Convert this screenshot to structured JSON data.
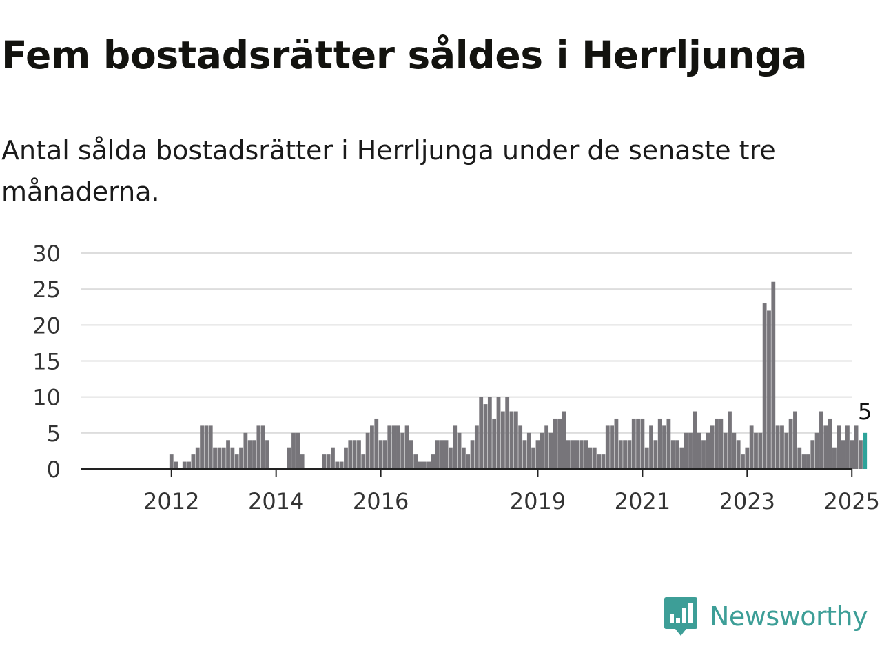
{
  "header": {
    "title": "Fem bostadsrätter såldes i Herrljunga",
    "subtitle": "Antal sålda bostadsrätter i Herrljunga under de senaste tre månaderna."
  },
  "brand": {
    "name": "Newsworthy",
    "icon": "newsworthy-logo-icon",
    "color": "#3d9e97"
  },
  "colors": {
    "bar": "#77757a",
    "highlight": "#2ea39a",
    "grid": "#dddddd",
    "axis": "#222222"
  },
  "chart_data": {
    "type": "bar",
    "title": "Fem bostadsrätter såldes i Herrljunga",
    "subtitle": "Antal sålda bostadsrätter i Herrljunga under de senaste tre månaderna.",
    "xlabel": "",
    "ylabel": "",
    "ylim": [
      0,
      30
    ],
    "yticks": [
      0,
      5,
      10,
      15,
      20,
      25,
      30
    ],
    "xticks": [
      {
        "label": "2012",
        "month": "2012-01"
      },
      {
        "label": "2014",
        "month": "2014-01"
      },
      {
        "label": "2016",
        "month": "2016-01"
      },
      {
        "label": "2019",
        "month": "2019-01"
      },
      {
        "label": "2021",
        "month": "2021-01"
      },
      {
        "label": "2023",
        "month": "2023-01"
      },
      {
        "label": "2025",
        "month": "2025-01"
      }
    ],
    "grid": true,
    "legend": "none",
    "start_month": "2011-01",
    "end_month": "2025-04",
    "values": [
      0,
      0,
      0,
      0,
      0,
      0,
      0,
      0,
      0,
      0,
      0,
      0,
      2,
      1,
      0,
      1,
      1,
      2,
      3,
      6,
      6,
      6,
      3,
      3,
      3,
      4,
      3,
      2,
      3,
      5,
      4,
      4,
      6,
      6,
      4,
      0,
      0,
      0,
      0,
      3,
      5,
      5,
      2,
      0,
      0,
      0,
      0,
      2,
      2,
      3,
      1,
      1,
      3,
      4,
      4,
      4,
      2,
      5,
      6,
      7,
      4,
      4,
      6,
      6,
      6,
      5,
      6,
      4,
      2,
      1,
      1,
      1,
      2,
      4,
      4,
      4,
      3,
      6,
      5,
      3,
      2,
      4,
      6,
      10,
      9,
      10,
      7,
      10,
      8,
      10,
      8,
      8,
      6,
      4,
      5,
      3,
      4,
      5,
      6,
      5,
      7,
      7,
      8,
      4,
      4,
      4,
      4,
      4,
      3,
      3,
      2,
      2,
      6,
      6,
      7,
      4,
      4,
      4,
      7,
      7,
      7,
      3,
      6,
      4,
      7,
      6,
      7,
      4,
      4,
      3,
      5,
      5,
      8,
      5,
      4,
      5,
      6,
      7,
      7,
      5,
      8,
      5,
      4,
      2,
      3,
      6,
      5,
      5,
      23,
      22,
      26,
      6,
      6,
      5,
      7,
      8,
      3,
      2,
      2,
      4,
      5,
      8,
      6,
      7,
      3,
      6,
      4,
      6,
      4,
      6,
      4,
      5
    ],
    "highlight": {
      "month": "2025-04",
      "value": 5,
      "label": "5"
    }
  }
}
